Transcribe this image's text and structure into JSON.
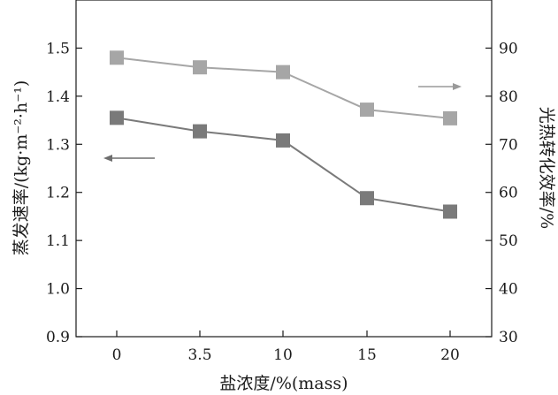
{
  "chart_data": {
    "type": "line",
    "categories": [
      "0",
      "3.5",
      "10",
      "15",
      "20"
    ],
    "xlabel": "盐浓度/%(mass)",
    "y_left_label": "蒸发速率/(kg·m⁻²·h⁻¹)",
    "y_right_label": "光热转化效率/%",
    "y_left_ticks": [
      "0.9",
      "1.0",
      "1.1",
      "1.2",
      "1.3",
      "1.4",
      "1.5"
    ],
    "y_right_ticks": [
      "30",
      "40",
      "50",
      "60",
      "70",
      "80",
      "90"
    ],
    "y_left_lim": [
      0.9,
      1.6
    ],
    "y_right_lim": [
      30,
      100
    ],
    "series": [
      {
        "axis": "left",
        "values": [
          1.355,
          1.327,
          1.308,
          1.188,
          1.16
        ],
        "color": "#7a7a7a"
      },
      {
        "axis": "right",
        "values": [
          88.0,
          86.0,
          85.0,
          77.2,
          75.4
        ],
        "color": "#a6a6a6"
      }
    ],
    "arrows": [
      {
        "direction": "left",
        "points_to": "left-axis",
        "color": "#6e6e6e"
      },
      {
        "direction": "right",
        "points_to": "right-axis",
        "color": "#9a9a9a"
      }
    ],
    "grid": false
  }
}
